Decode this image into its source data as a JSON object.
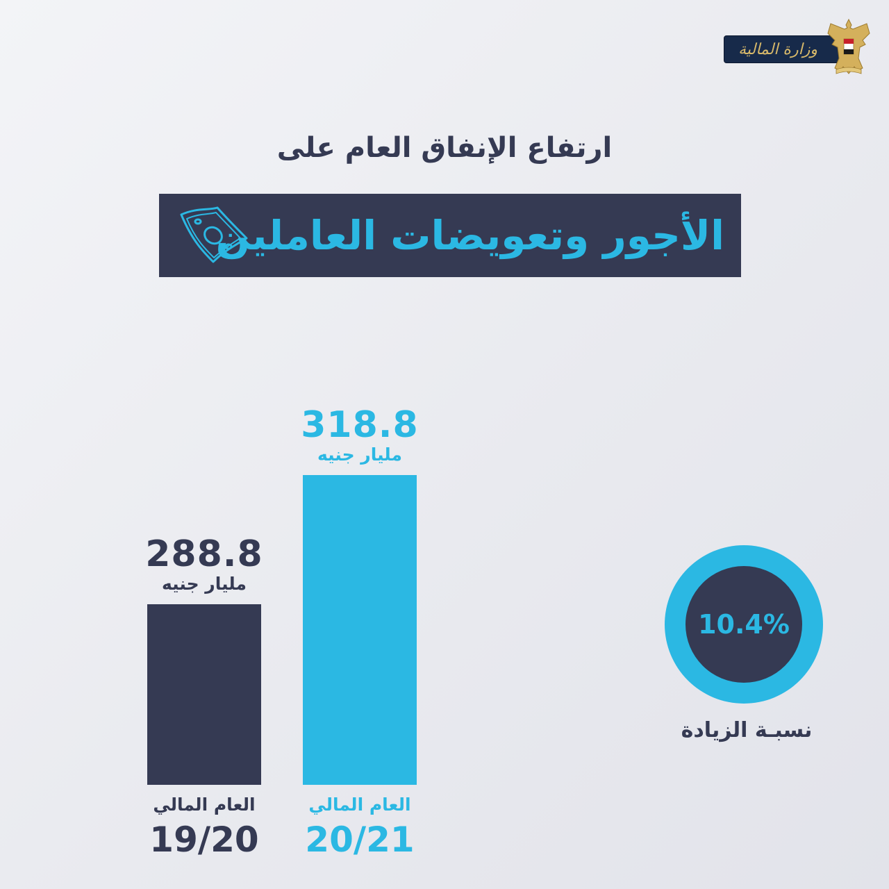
{
  "logo": {
    "text": "وزارة المالية"
  },
  "header": {
    "subtitle": "ارتفاع الإنفاق العام على",
    "title": "الأجور وتعويضات العاملين"
  },
  "colors": {
    "dark": "#353a53",
    "accent": "#2bb8e3",
    "icon": "money-bill-icon"
  },
  "chart_data": {
    "type": "bar",
    "categories": [
      "19/20",
      "20/21"
    ],
    "category_prefix": "العام المالي",
    "values": [
      288.8,
      318.8
    ],
    "value_labels": [
      "288.8",
      "318.8"
    ],
    "unit": "مليار جنيه",
    "bar_colors": [
      "#353a53",
      "#2bb8e3"
    ],
    "title": "الأجور وتعويضات العاملين",
    "xlabel": "",
    "ylabel": "",
    "grid": false
  },
  "increase": {
    "value": "10.4%",
    "label": "نسبـة الزيادة"
  }
}
